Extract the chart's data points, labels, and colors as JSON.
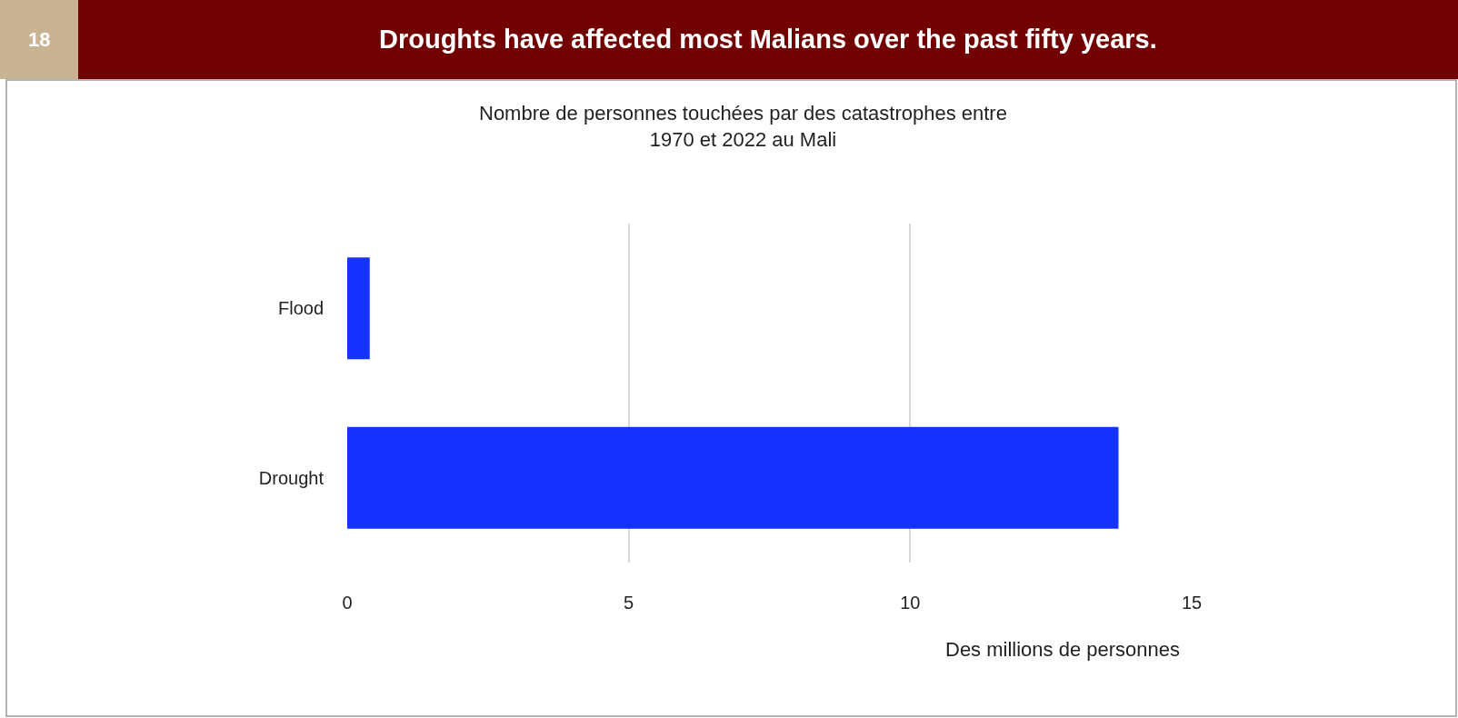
{
  "chart_data": {
    "type": "bar",
    "orientation": "horizontal",
    "title": "Droughts have affected most Malians over the past fifty years.",
    "subtitle": "Nombre de personnes touchées par des catastrophes entre\n1970 et 2022 au Mali",
    "xlabel": "Des millions de personnes",
    "annotations": [
      "18"
    ],
    "categories": [
      "Flood",
      "Drought"
    ],
    "values": [
      0.4,
      13.7
    ],
    "color": "#1533ff",
    "xlim": [
      0,
      15
    ],
    "xticks": [
      0,
      5,
      10,
      15
    ],
    "grid": "x"
  }
}
